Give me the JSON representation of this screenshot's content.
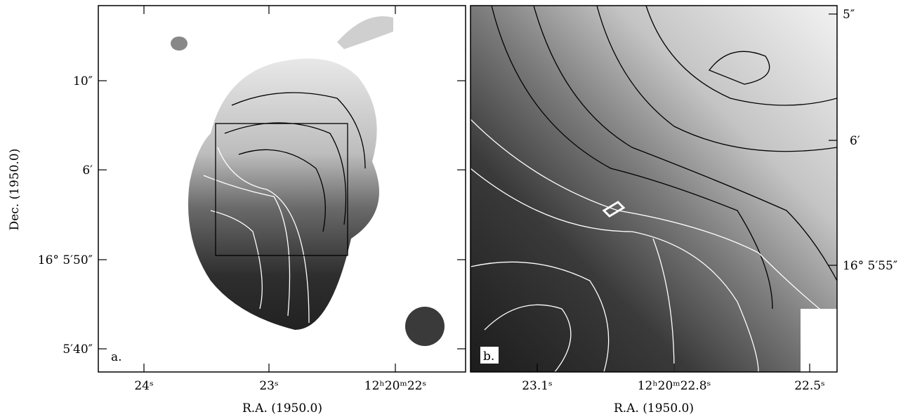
{
  "panel_a": {
    "label": "a.",
    "x_axis_label": "R.A. (1950.0)",
    "y_axis_label": "Dec. (1950.0)",
    "x_ticks": [
      "24ˢ",
      "23ˢ",
      "12ʰ20ᵐ22ˢ"
    ],
    "y_ticks": [
      "10″",
      "6′",
      "16° 5′50″",
      "5′40″"
    ]
  },
  "panel_b": {
    "label": "b.",
    "x_axis_label": "R.A. (1950.0)",
    "x_ticks": [
      "23.1ˢ",
      "12ʰ20ᵐ22.8ˢ",
      "22.5ˢ"
    ],
    "y_ticks": [
      "5″",
      "6′",
      "16° 5′55″"
    ]
  }
}
